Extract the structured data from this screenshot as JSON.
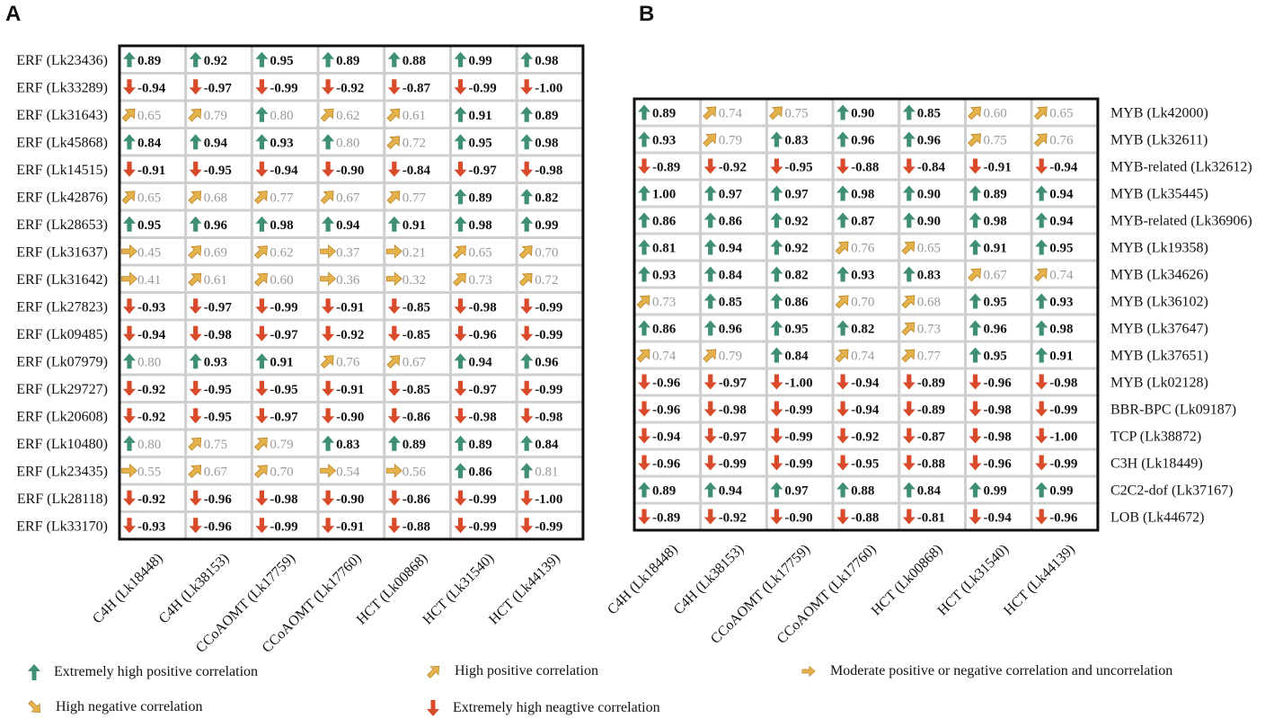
{
  "panels": {
    "a_label": "A",
    "b_label": "B"
  },
  "colors": {
    "extremely_positive": "#3f8f74",
    "high_positive": "#e5b14a",
    "moderate": "#e5b14a",
    "high_negative": "#e5b14a",
    "extremely_negative": "#d94a2a",
    "strong_text": "#111111",
    "weak_text": "#999999",
    "grid": "#cfcfcf"
  },
  "legend": {
    "extremely_positive": "Extremely high positive correlation",
    "high_positive": "High positive correlation",
    "moderate": "Moderate positive or negative correlation and uncorrelation",
    "high_negative": "High negative correlation",
    "extremely_negative": "Extremely high neagtive correlation"
  },
  "chart_data": [
    {
      "type": "heatmap",
      "title": "A",
      "columns": [
        "C4H (Lk18448)",
        "C4H (Lk38153)",
        "CCoAOMT (Lk17759)",
        "CCoAOMT (Lk17760)",
        "HCT (Lk00868)",
        "HCT (Lk31540)",
        "HCT (Lk44139)"
      ],
      "rows": [
        "ERF (Lk23436)",
        "ERF (Lk33289)",
        "ERF (Lk31643)",
        "ERF (Lk45868)",
        "ERF (Lk14515)",
        "ERF (Lk42876)",
        "ERF (Lk28653)",
        "ERF (Lk31637)",
        "ERF (Lk31642)",
        "ERF (Lk27823)",
        "ERF (Lk09485)",
        "ERF (Lk07979)",
        "ERF (Lk29727)",
        "ERF (Lk20608)",
        "ERF (Lk10480)",
        "ERF (Lk23435)",
        "ERF (Lk28118)",
        "ERF (Lk33170)"
      ],
      "row_label_side": "left",
      "values": [
        [
          "0.89",
          "0.92",
          "0.95",
          "0.89",
          "0.88",
          "0.99",
          "0.98"
        ],
        [
          "-0.94",
          "-0.97",
          "-0.99",
          "-0.92",
          "-0.87",
          "-0.99",
          "-1.00"
        ],
        [
          "0.65",
          "0.79",
          "0.80",
          "0.62",
          "0.61",
          "0.91",
          "0.89"
        ],
        [
          "0.84",
          "0.94",
          "0.93",
          "0.80",
          "0.72",
          "0.95",
          "0.98"
        ],
        [
          "-0.91",
          "-0.95",
          "-0.94",
          "-0.90",
          "-0.84",
          "-0.97",
          "-0.98"
        ],
        [
          "0.65",
          "0.68",
          "0.77",
          "0.67",
          "0.77",
          "0.89",
          "0.82"
        ],
        [
          "0.95",
          "0.96",
          "0.98",
          "0.94",
          "0.91",
          "0.98",
          "0.99"
        ],
        [
          "0.45",
          "0.69",
          "0.62",
          "0.37",
          "0.21",
          "0.65",
          "0.70"
        ],
        [
          "0.41",
          "0.61",
          "0.60",
          "0.36",
          "0.32",
          "0.73",
          "0.72"
        ],
        [
          "-0.93",
          "-0.97",
          "-0.99",
          "-0.91",
          "-0.85",
          "-0.98",
          "-0.99"
        ],
        [
          "-0.94",
          "-0.98",
          "-0.97",
          "-0.92",
          "-0.85",
          "-0.96",
          "-0.99"
        ],
        [
          "0.80",
          "0.93",
          "0.91",
          "0.76",
          "0.67",
          "0.94",
          "0.96"
        ],
        [
          "-0.92",
          "-0.95",
          "-0.95",
          "-0.91",
          "-0.85",
          "-0.97",
          "-0.99"
        ],
        [
          "-0.92",
          "-0.95",
          "-0.97",
          "-0.90",
          "-0.86",
          "-0.98",
          "-0.98"
        ],
        [
          "0.80",
          "0.75",
          "0.79",
          "0.83",
          "0.89",
          "0.89",
          "0.84"
        ],
        [
          "0.55",
          "0.67",
          "0.70",
          "0.54",
          "0.56",
          "0.86",
          "0.81"
        ],
        [
          "-0.92",
          "-0.96",
          "-0.98",
          "-0.90",
          "-0.86",
          "-0.99",
          "-1.00"
        ],
        [
          "-0.93",
          "-0.96",
          "-0.99",
          "-0.91",
          "-0.88",
          "-0.99",
          "-0.99"
        ]
      ],
      "categories": [
        [
          "EP",
          "EP",
          "EP",
          "EP",
          "EP",
          "EP",
          "EP"
        ],
        [
          "EN",
          "EN",
          "EN",
          "EN",
          "EN",
          "EN",
          "EN"
        ],
        [
          "HP",
          "HP",
          "EPw",
          "HP",
          "HP",
          "EP",
          "EP"
        ],
        [
          "EP",
          "EP",
          "EP",
          "EPw",
          "HP",
          "EP",
          "EP"
        ],
        [
          "EN",
          "EN",
          "EN",
          "EN",
          "EN",
          "EN",
          "EN"
        ],
        [
          "HP",
          "HP",
          "HP",
          "HP",
          "HP",
          "EP",
          "EP"
        ],
        [
          "EP",
          "EP",
          "EP",
          "EP",
          "EP",
          "EP",
          "EP"
        ],
        [
          "MO",
          "HP",
          "HP",
          "MO",
          "MO",
          "HP",
          "HP"
        ],
        [
          "MO",
          "HP",
          "HP",
          "MO",
          "MO",
          "HP",
          "HP"
        ],
        [
          "EN",
          "EN",
          "EN",
          "EN",
          "EN",
          "EN",
          "EN"
        ],
        [
          "EN",
          "EN",
          "EN",
          "EN",
          "EN",
          "EN",
          "EN"
        ],
        [
          "EPw",
          "EP",
          "EP",
          "HP",
          "HP",
          "EP",
          "EP"
        ],
        [
          "EN",
          "EN",
          "EN",
          "EN",
          "EN",
          "EN",
          "EN"
        ],
        [
          "EN",
          "EN",
          "EN",
          "EN",
          "EN",
          "EN",
          "EN"
        ],
        [
          "EPw",
          "HP",
          "HP",
          "EP",
          "EP",
          "EP",
          "EP"
        ],
        [
          "MO",
          "HP",
          "HP",
          "MO",
          "MO",
          "EP",
          "EPw"
        ],
        [
          "EN",
          "EN",
          "EN",
          "EN",
          "EN",
          "EN",
          "EN"
        ],
        [
          "EN",
          "EN",
          "EN",
          "EN",
          "EN",
          "EN",
          "EN"
        ]
      ]
    },
    {
      "type": "heatmap",
      "title": "B",
      "columns": [
        "C4H (Lk18448)",
        "C4H (Lk38153)",
        "CCoAOMT (Lk17759)",
        "CCoAOMT (Lk17760)",
        "HCT (Lk00868)",
        "HCT (Lk31540)",
        "HCT (Lk44139)"
      ],
      "rows": [
        "MYB (Lk42000)",
        "MYB (Lk32611)",
        "MYB-related (Lk32612)",
        "MYB (Lk35445)",
        "MYB-related (Lk36906)",
        "MYB (Lk19358)",
        "MYB (Lk34626)",
        "MYB (Lk36102)",
        "MYB (Lk37647)",
        "MYB (Lk37651)",
        "MYB (Lk02128)",
        "BBR-BPC (Lk09187)",
        "TCP (Lk38872)",
        "C3H (Lk18449)",
        "C2C2-dof (Lk37167)",
        "LOB (Lk44672)"
      ],
      "row_label_side": "right",
      "values": [
        [
          "0.89",
          "0.74",
          "0.75",
          "0.90",
          "0.85",
          "0.60",
          "0.65"
        ],
        [
          "0.93",
          "0.79",
          "0.83",
          "0.96",
          "0.96",
          "0.75",
          "0.76"
        ],
        [
          "-0.89",
          "-0.92",
          "-0.95",
          "-0.88",
          "-0.84",
          "-0.91",
          "-0.94"
        ],
        [
          "1.00",
          "0.97",
          "0.97",
          "0.98",
          "0.90",
          "0.89",
          "0.94"
        ],
        [
          "0.86",
          "0.86",
          "0.92",
          "0.87",
          "0.90",
          "0.98",
          "0.94"
        ],
        [
          "0.81",
          "0.94",
          "0.92",
          "0.76",
          "0.65",
          "0.91",
          "0.95"
        ],
        [
          "0.93",
          "0.84",
          "0.82",
          "0.93",
          "0.83",
          "0.67",
          "0.74"
        ],
        [
          "0.73",
          "0.85",
          "0.86",
          "0.70",
          "0.68",
          "0.95",
          "0.93"
        ],
        [
          "0.86",
          "0.96",
          "0.95",
          "0.82",
          "0.73",
          "0.96",
          "0.98"
        ],
        [
          "0.74",
          "0.79",
          "0.84",
          "0.74",
          "0.77",
          "0.95",
          "0.91"
        ],
        [
          "-0.96",
          "-0.97",
          "-1.00",
          "-0.94",
          "-0.89",
          "-0.96",
          "-0.98"
        ],
        [
          "-0.96",
          "-0.98",
          "-0.99",
          "-0.94",
          "-0.89",
          "-0.98",
          "-0.99"
        ],
        [
          "-0.94",
          "-0.97",
          "-0.99",
          "-0.92",
          "-0.87",
          "-0.98",
          "-1.00"
        ],
        [
          "-0.96",
          "-0.99",
          "-0.99",
          "-0.95",
          "-0.88",
          "-0.96",
          "-0.99"
        ],
        [
          "0.89",
          "0.94",
          "0.97",
          "0.88",
          "0.84",
          "0.99",
          "0.99"
        ],
        [
          "-0.89",
          "-0.92",
          "-0.90",
          "-0.88",
          "-0.81",
          "-0.94",
          "-0.96"
        ]
      ],
      "categories": [
        [
          "EP",
          "HP",
          "HP",
          "EP",
          "EP",
          "HP",
          "HP"
        ],
        [
          "EP",
          "HP",
          "EP",
          "EP",
          "EP",
          "HP",
          "HP"
        ],
        [
          "EN",
          "EN",
          "EN",
          "EN",
          "EN",
          "EN",
          "EN"
        ],
        [
          "EP",
          "EP",
          "EP",
          "EP",
          "EP",
          "EP",
          "EP"
        ],
        [
          "EP",
          "EP",
          "EP",
          "EP",
          "EP",
          "EP",
          "EP"
        ],
        [
          "EP",
          "EP",
          "EP",
          "HP",
          "HP",
          "EP",
          "EP"
        ],
        [
          "EP",
          "EP",
          "EP",
          "EP",
          "EP",
          "HP",
          "HP"
        ],
        [
          "HP",
          "EP",
          "EP",
          "HP",
          "HP",
          "EP",
          "EP"
        ],
        [
          "EP",
          "EP",
          "EP",
          "EP",
          "HP",
          "EP",
          "EP"
        ],
        [
          "HP",
          "HP",
          "EP",
          "HP",
          "HP",
          "EP",
          "EP"
        ],
        [
          "EN",
          "EN",
          "EN",
          "EN",
          "EN",
          "EN",
          "EN"
        ],
        [
          "EN",
          "EN",
          "EN",
          "EN",
          "EN",
          "EN",
          "EN"
        ],
        [
          "EN",
          "EN",
          "EN",
          "EN",
          "EN",
          "EN",
          "EN"
        ],
        [
          "EN",
          "EN",
          "EN",
          "EN",
          "EN",
          "EN",
          "EN"
        ],
        [
          "EP",
          "EP",
          "EP",
          "EP",
          "EP",
          "EP",
          "EP"
        ],
        [
          "EN",
          "EN",
          "EN",
          "EN",
          "EN",
          "EN",
          "EN"
        ]
      ]
    }
  ]
}
